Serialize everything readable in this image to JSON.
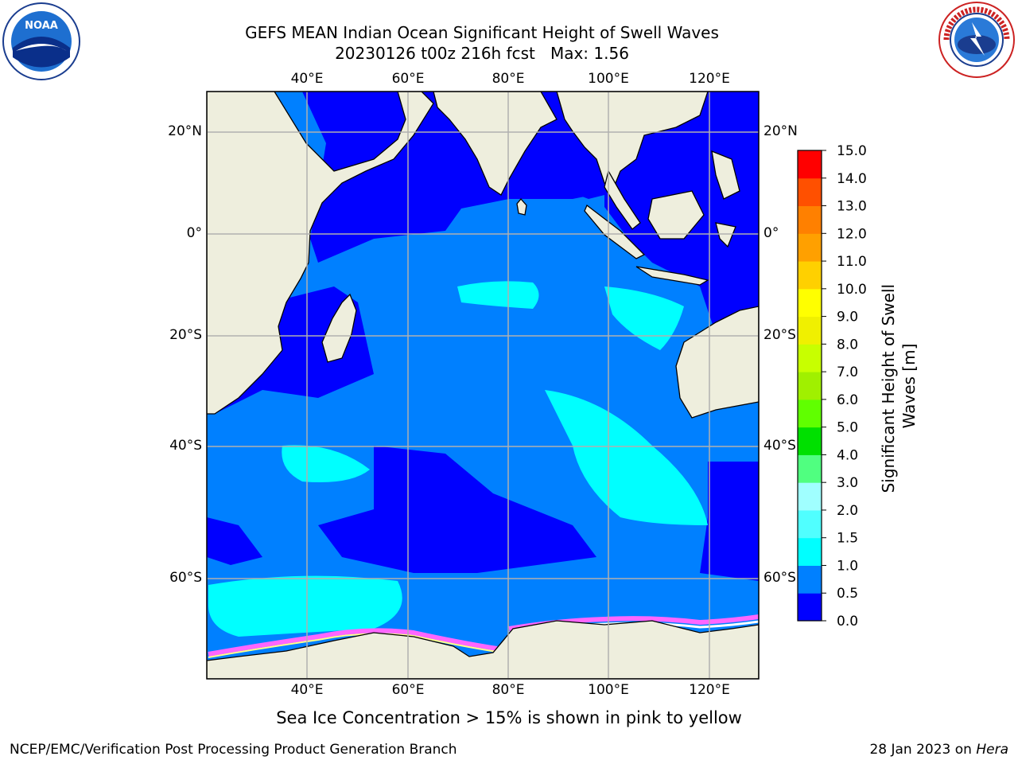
{
  "header": {
    "title_line1": "GEFS MEAN Indian Ocean Significant Height of Swell Waves",
    "title_line2": "20230126 t00z 216h fcst   Max: 1.56"
  },
  "logos": {
    "left": {
      "name": "NOAA",
      "text": "NOAA"
    },
    "right": {
      "name": "National Weather Service",
      "text": "NATIONAL WEATHER SERVICE"
    }
  },
  "map": {
    "extent": {
      "lon": [
        20,
        130
      ],
      "lat": [
        -70,
        28
      ]
    },
    "lon_ticks": [
      {
        "value": 40,
        "label": "40°E"
      },
      {
        "value": 60,
        "label": "60°E"
      },
      {
        "value": 80,
        "label": "80°E"
      },
      {
        "value": 100,
        "label": "100°E"
      },
      {
        "value": 120,
        "label": "120°E"
      }
    ],
    "lat_ticks": [
      {
        "value": 20,
        "label": "20°N"
      },
      {
        "value": 0,
        "label": "0°"
      },
      {
        "value": -20,
        "label": "20°S"
      },
      {
        "value": -40,
        "label": "40°S"
      },
      {
        "value": -60,
        "label": "60°S"
      }
    ],
    "colors": {
      "land": "#eeeedd",
      "ocean_low": "#0000ff",
      "ocean_mid": "#0080ff",
      "ocean_high": "#00ffff",
      "sea_ice": "#ff66ff",
      "grid": "#b0b0b0"
    }
  },
  "colorbar": {
    "label": "Significant Height of Swell Waves [m]",
    "levels": [
      "0.0",
      "0.5",
      "1.0",
      "1.5",
      "2.0",
      "3.0",
      "4.0",
      "5.0",
      "6.0",
      "7.0",
      "8.0",
      "9.0",
      "10.0",
      "11.0",
      "12.0",
      "13.0",
      "14.0",
      "15.0"
    ],
    "colors": [
      "#0000ff",
      "#0080ff",
      "#00ffff",
      "#50ffff",
      "#a0ffff",
      "#50ff80",
      "#00e000",
      "#60ff00",
      "#a0f000",
      "#c8ff00",
      "#f0f000",
      "#ffff00",
      "#ffd000",
      "#ffa000",
      "#ff8000",
      "#ff5000",
      "#ff0000"
    ]
  },
  "caption": "Sea Ice Concentration > 15% is shown in pink to yellow",
  "footer": {
    "left": "NCEP/EMC/Verification Post Processing Product Generation Branch",
    "right_date": "28 Jan 2023 on ",
    "right_machine": "Hera"
  }
}
